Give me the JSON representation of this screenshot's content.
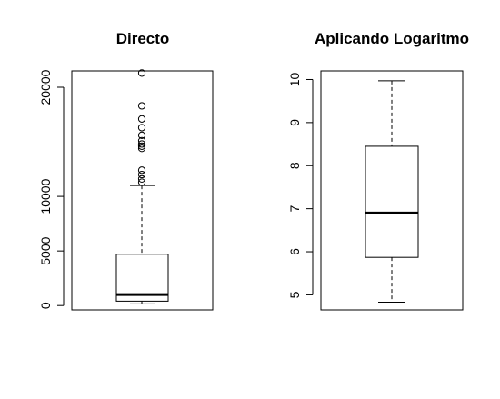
{
  "figure": {
    "background": "#ffffff"
  },
  "chart_data": [
    {
      "type": "boxplot",
      "title": "Directo",
      "ylim": [
        -400,
        21500
      ],
      "yticks": [
        0,
        5000,
        10000,
        20000
      ],
      "ytick_labels": [
        "0",
        "5000",
        "10000",
        "20000"
      ],
      "grid": false,
      "box": {
        "min": 150,
        "q1": 400,
        "median": 1000,
        "q3": 4700,
        "whisker_high": 11000
      },
      "outliers": [
        11300,
        11600,
        12000,
        12400,
        14400,
        14600,
        14800,
        15100,
        15600,
        16300,
        17100,
        18300,
        21300
      ]
    },
    {
      "type": "boxplot",
      "title": "Aplicando Logaritmo",
      "ylim": [
        4.65,
        10.2
      ],
      "yticks": [
        5,
        6,
        7,
        8,
        9,
        10
      ],
      "ytick_labels": [
        "5",
        "6",
        "7",
        "8",
        "9",
        "10"
      ],
      "grid": false,
      "box": {
        "min": 4.83,
        "q1": 5.87,
        "median": 6.9,
        "q3": 8.45,
        "whisker_high": 9.97
      },
      "outliers": []
    }
  ]
}
